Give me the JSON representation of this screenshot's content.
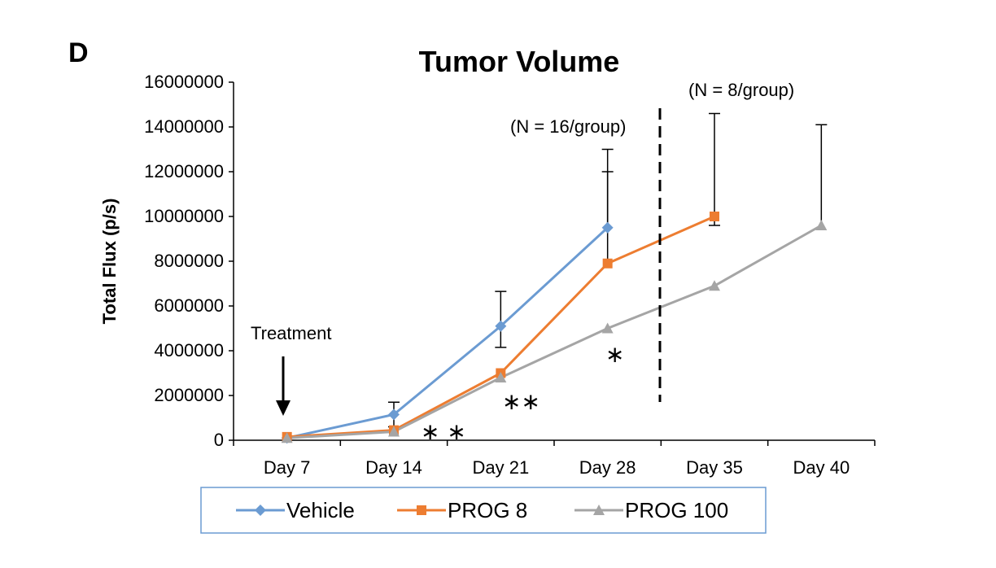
{
  "panel_label": "D",
  "colors": {
    "vehicle": "#6b9bd2",
    "prog8": "#ed7d31",
    "prog100": "#a5a5a5"
  },
  "chart_data": {
    "type": "line",
    "title": "Tumor Volume",
    "xlabel": "",
    "ylabel": "Total Flux (p/s)",
    "ylim": [
      0,
      16000000
    ],
    "yticks": [
      "0",
      "2000000",
      "4000000",
      "6000000",
      "8000000",
      "10000000",
      "12000000",
      "14000000",
      "16000000"
    ],
    "categories": [
      "Day 7",
      "Day 14",
      "Day 21",
      "Day 28",
      "Day 35",
      "Day 40"
    ],
    "grid": false,
    "legend_position": "bottom",
    "series": [
      {
        "name": "Vehicle",
        "marker": "diamond",
        "values": [
          100000,
          1150000,
          5100000,
          9500000,
          null,
          null
        ],
        "error_upper": [
          null,
          1700000,
          6650000,
          13000000,
          null,
          null
        ],
        "error_lower": [
          null,
          600000,
          4150000,
          null,
          null,
          null
        ]
      },
      {
        "name": "PROG 8",
        "marker": "square",
        "values": [
          150000,
          450000,
          3000000,
          7900000,
          10000000,
          null
        ],
        "error_upper": [
          null,
          null,
          null,
          12000000,
          14600000,
          null
        ],
        "error_lower": [
          null,
          null,
          null,
          null,
          9600000,
          null
        ]
      },
      {
        "name": "PROG 100",
        "marker": "triangle",
        "values": [
          100000,
          380000,
          2800000,
          5000000,
          6900000,
          9600000
        ],
        "error_upper": [
          null,
          null,
          null,
          null,
          null,
          14100000
        ],
        "error_lower": [
          null,
          null,
          null,
          null,
          null,
          null
        ]
      }
    ],
    "annotations": {
      "treatment": "Treatment",
      "n16": "(N = 16/group)",
      "n8": "(N = 8/group)",
      "sig_day14": "∗ ∗",
      "sig_day21": "∗∗",
      "sig_day28": "∗"
    }
  }
}
